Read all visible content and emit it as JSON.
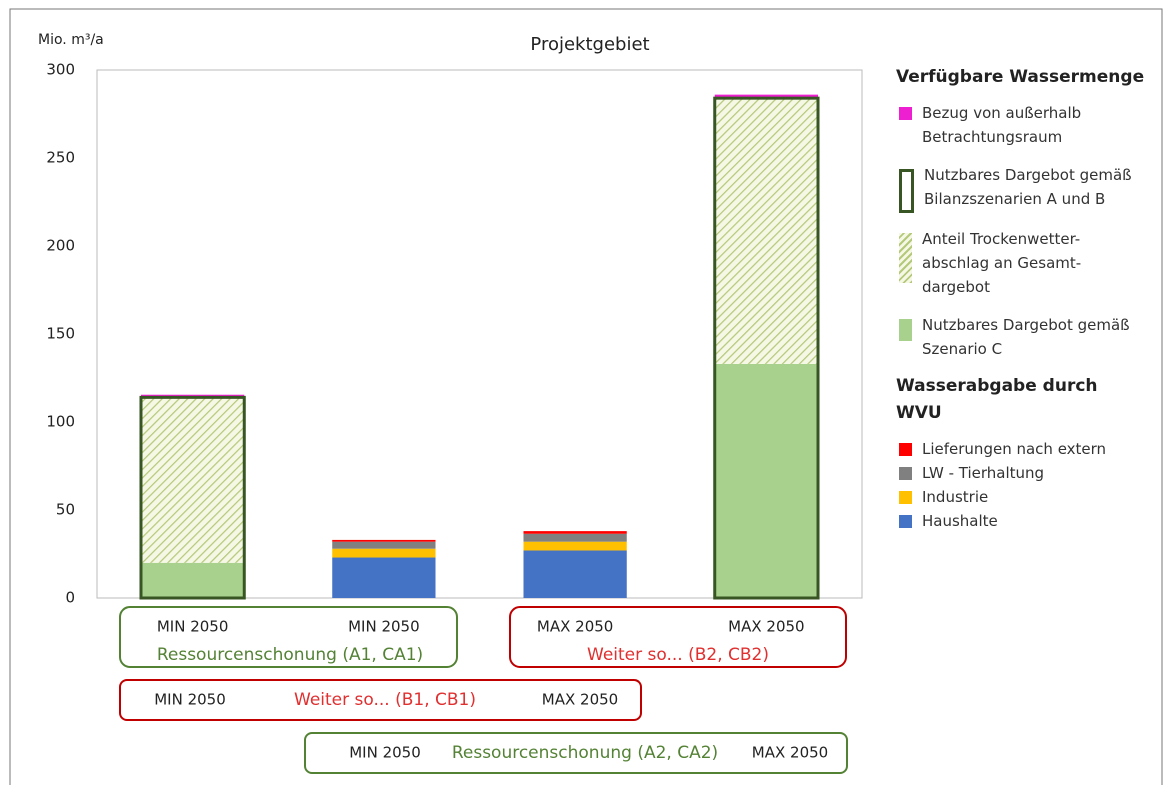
{
  "chart_data": {
    "type": "stacked_bar",
    "title": "Projektgebiet",
    "y_label": "Mio. m³/a",
    "categories": [
      "MIN 2050",
      "MIN 2050",
      "MAX 2050",
      "MAX 2050"
    ],
    "ylim": [
      0,
      300
    ],
    "yticks": [
      0,
      50,
      100,
      150,
      200,
      250,
      300
    ],
    "grid": false,
    "series_groups": [
      {
        "title": "Verfügbare Wassermenge",
        "series": [
          {
            "name": "Bezug von außerhalb Betrachtungsraum",
            "color": "#ee1fd0",
            "values": [
              1.5,
              null,
              null,
              2
            ]
          },
          {
            "name": "Nutzbares Dargebot gemäß Bilanzszenarien A und B",
            "color": "#375623",
            "style": "outline",
            "values": [
              114,
              null,
              null,
              284
            ]
          },
          {
            "name": "Anteil Trockenwetter-abschlag an Gesamt-dargebot",
            "color": "#b5c97a",
            "pattern": "hatch",
            "values": [
              94,
              null,
              null,
              151
            ]
          },
          {
            "name": "Nutzbares Dargebot gemäß Szenario C",
            "color": "#a9d18e",
            "values": [
              20,
              null,
              null,
              133
            ]
          }
        ]
      },
      {
        "title": "Wasserabgabe durch WVU",
        "series": [
          {
            "name": "Lieferungen nach extern",
            "color": "#ff0000",
            "values": [
              null,
              1,
              1.5,
              null
            ]
          },
          {
            "name": "LW - Tierhaltung",
            "color": "#808080",
            "values": [
              null,
              4,
              4.5,
              null
            ]
          },
          {
            "name": "Industrie",
            "color": "#ffc000",
            "values": [
              null,
              5,
              5,
              null
            ]
          },
          {
            "name": "Haushalte",
            "color": "#4472c4",
            "values": [
              null,
              23,
              27,
              null
            ]
          }
        ]
      }
    ],
    "pair_groups": [
      {
        "label": "Ressourcenschonung (A1, CA1)",
        "color": "#548235"
      },
      {
        "label": "Weiter so... (B2, CB2)",
        "color": "#c00000"
      }
    ],
    "scenarios": [
      {
        "start": "MIN 2050",
        "label": "Weiter so... (B1, CB1)",
        "end": "MAX 2050",
        "color": "#c00000"
      },
      {
        "start": "MIN 2050",
        "label": "Ressourcenschonung (A2, CA2)",
        "end": "MAX 2050",
        "color": "#548235"
      }
    ]
  }
}
